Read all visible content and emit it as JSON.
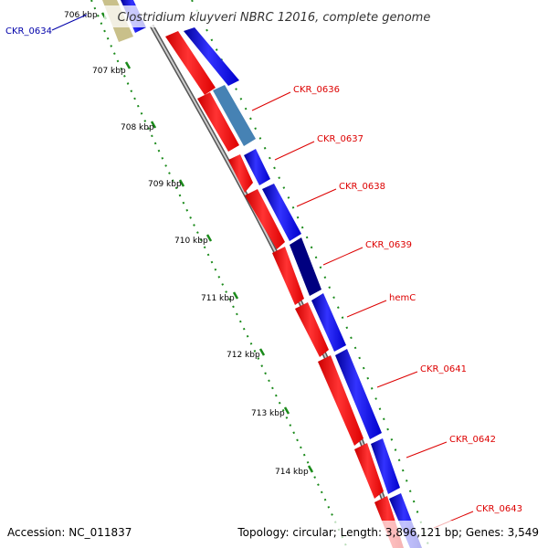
{
  "title": "Clostridium kluyveri NBRC 12016, complete genome",
  "footer": {
    "accession": "Accession: NC_011837",
    "topology": "Topology: circular; Length: 3,896,121 bp; Genes: 3,549"
  },
  "colors": {
    "forward_strand": "#0000ff",
    "reverse_strand": "#ff0000",
    "highlight_light": "#4682b4",
    "highlight_dark": "#000080",
    "tan_gene": "#c9c08a",
    "tick_marks": "#006400",
    "label_red": "#dd0000",
    "label_blue": "#0000aa"
  },
  "ticks": [
    {
      "label": "706 kbp"
    },
    {
      "label": "707 kbp"
    },
    {
      "label": "708 kbp"
    },
    {
      "label": "709 kbp"
    },
    {
      "label": "710 kbp"
    },
    {
      "label": "711 kbp"
    },
    {
      "label": "712 kbp"
    },
    {
      "label": "713 kbp"
    },
    {
      "label": "714 kbp"
    }
  ],
  "gene_labels": [
    {
      "name": "CKR_0634",
      "color": "blue"
    },
    {
      "name": "CKR_0636",
      "color": "red"
    },
    {
      "name": "CKR_0637",
      "color": "red"
    },
    {
      "name": "CKR_0638",
      "color": "red"
    },
    {
      "name": "CKR_0639",
      "color": "red"
    },
    {
      "name": "hemC",
      "color": "red"
    },
    {
      "name": "CKR_0641",
      "color": "red"
    },
    {
      "name": "CKR_0642",
      "color": "red"
    },
    {
      "name": "CKR_0643",
      "color": "red"
    }
  ]
}
